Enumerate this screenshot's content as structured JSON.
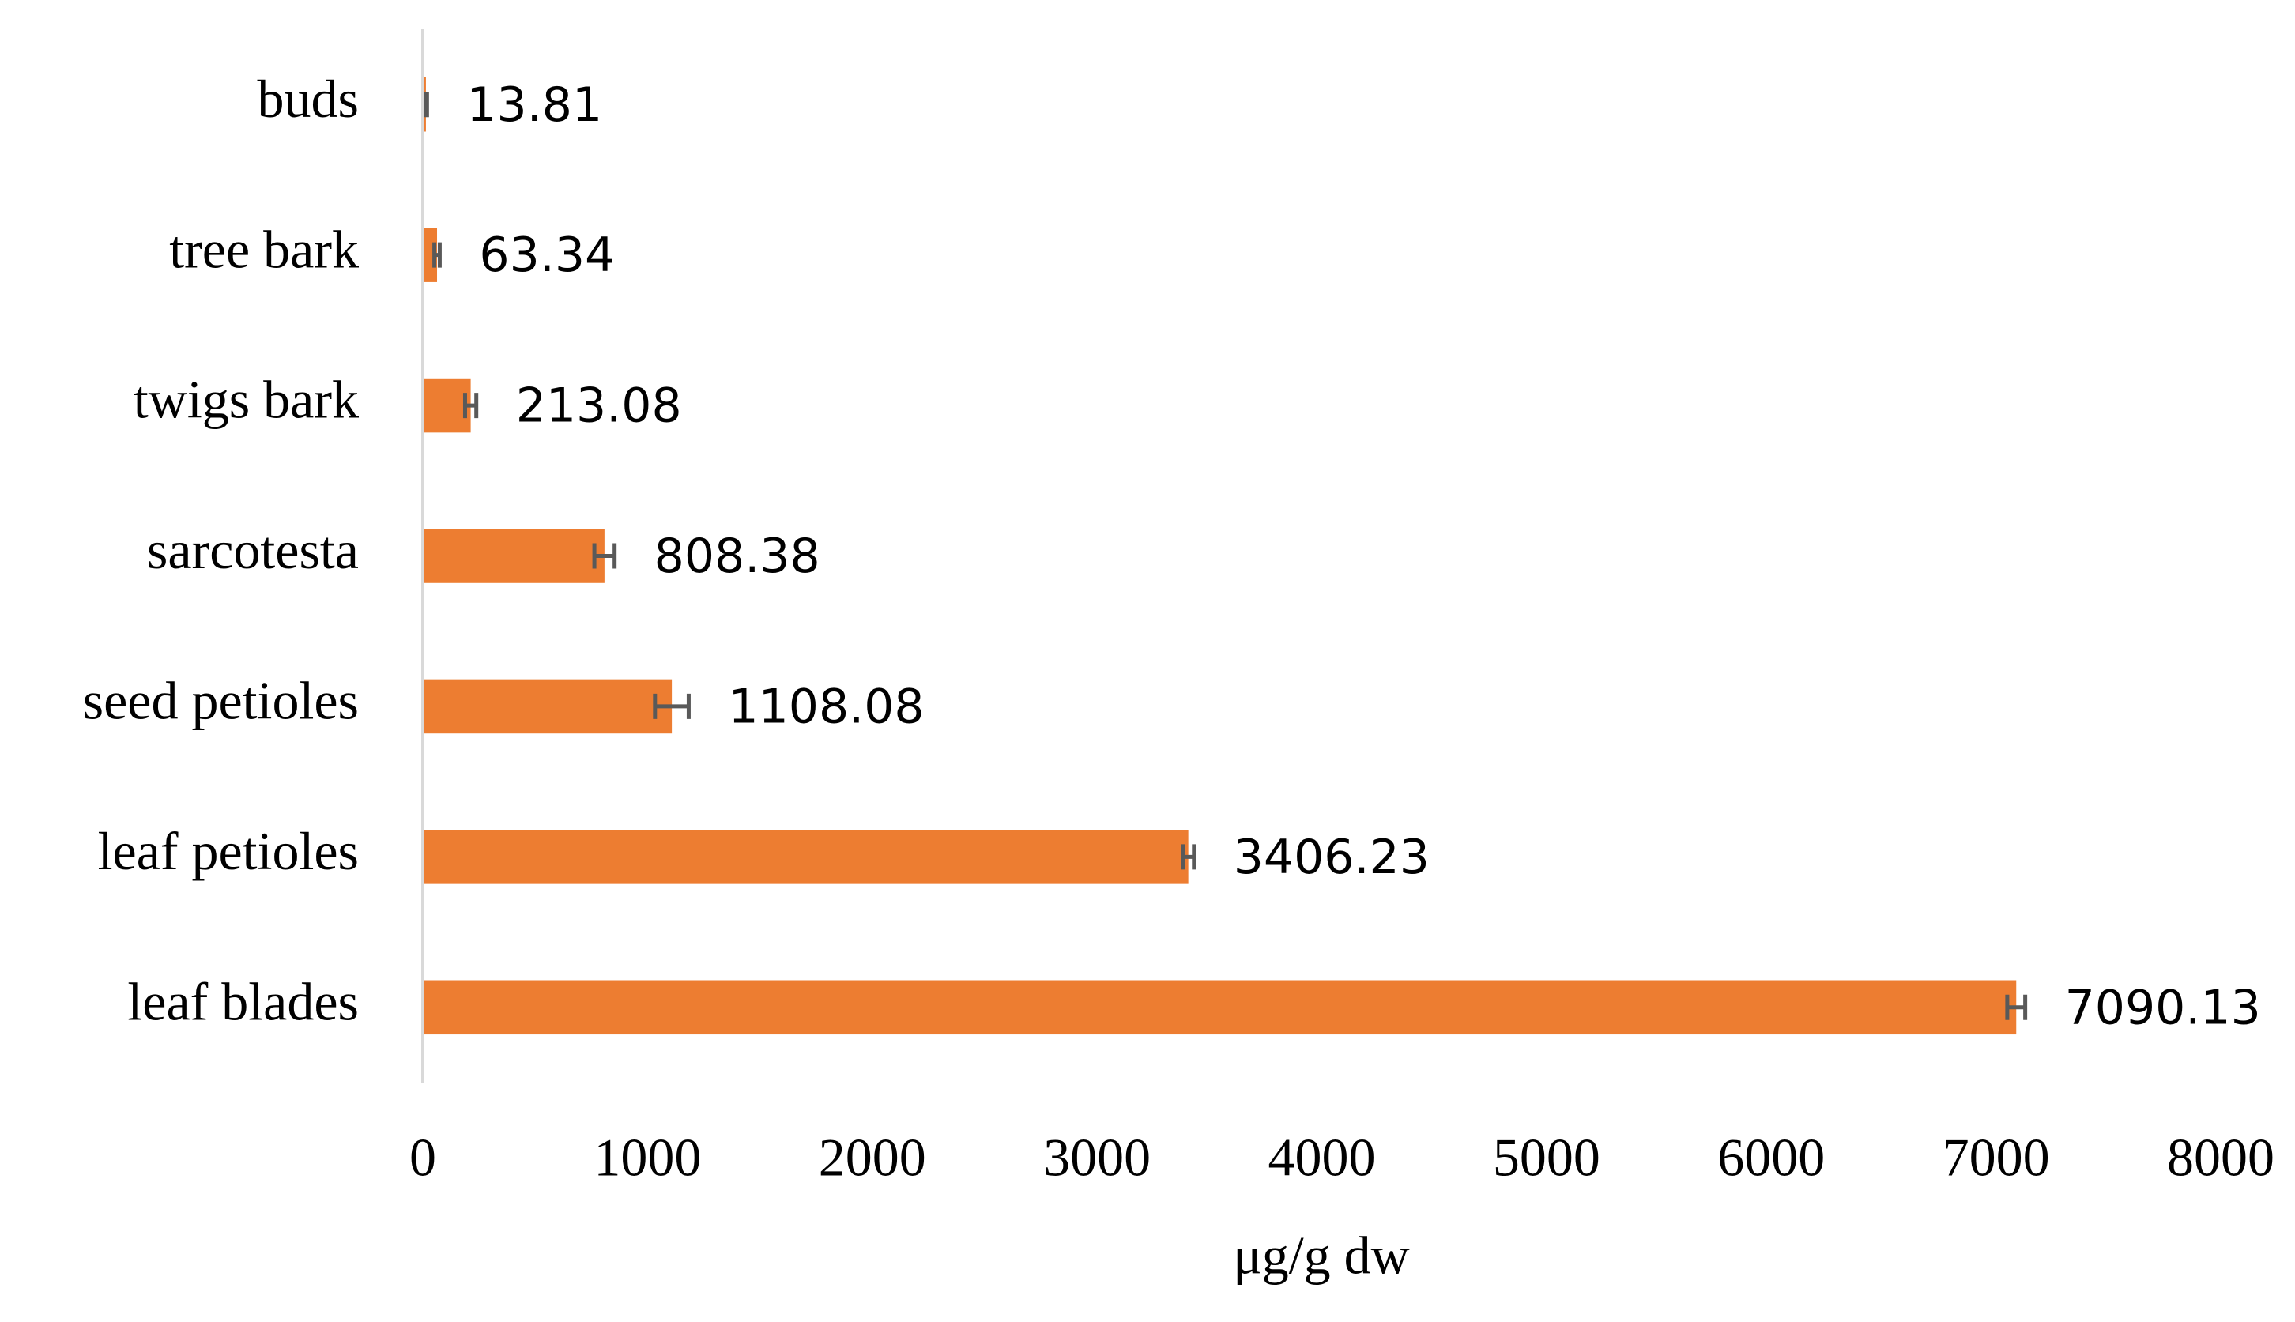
{
  "chart_data": {
    "type": "bar",
    "orientation": "horizontal",
    "categories": [
      "buds",
      "tree bark",
      "twigs bark",
      "sarcotesta",
      "seed petioles",
      "leaf petioles",
      "leaf blades"
    ],
    "values": [
      13.81,
      63.34,
      213.08,
      808.38,
      1108.08,
      3406.23,
      7090.13
    ],
    "errors": [
      5,
      12,
      25,
      45,
      75,
      25,
      40
    ],
    "color": "#ed7d31",
    "error_color": "#595959",
    "xlim": [
      0,
      8000
    ],
    "xticks": [
      0,
      1000,
      2000,
      3000,
      4000,
      5000,
      6000,
      7000,
      8000
    ],
    "x_label": "μg/g dw",
    "grid": false
  }
}
